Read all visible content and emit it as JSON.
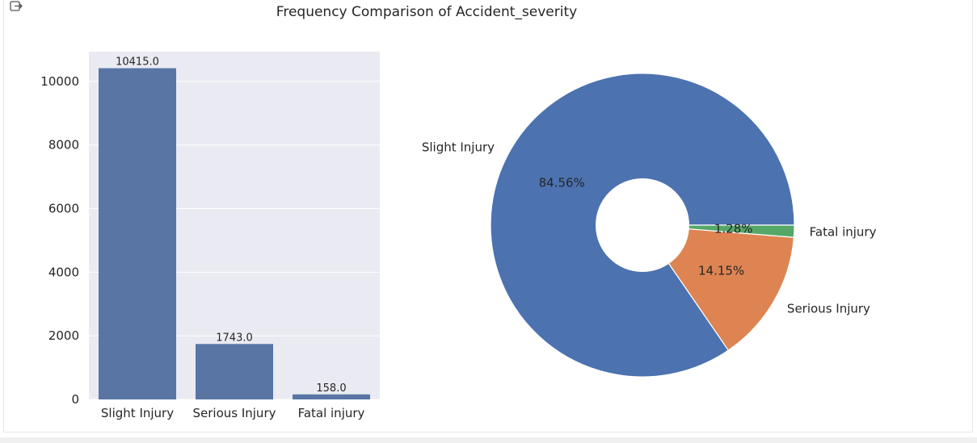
{
  "title": "Frequency Comparison of Accident_severity",
  "output_icon": "output-export-icon",
  "colors": {
    "axes_bg": "#eaeaf2",
    "grid": "#ffffff",
    "bar": "#5875a4",
    "pie": [
      "#4c72b0",
      "#dd8452",
      "#55a868"
    ]
  },
  "chart_data": [
    {
      "type": "bar",
      "categories": [
        "Slight Injury",
        "Serious Injury",
        "Fatal injury"
      ],
      "values": [
        10415,
        1743,
        158
      ],
      "data_labels": [
        "10415.0",
        "1743.0",
        "158.0"
      ],
      "yticks": [
        "0",
        "2000",
        "4000",
        "6000",
        "8000",
        "10000"
      ],
      "ylim": [
        0,
        10936
      ],
      "grid": true,
      "xlabel": "",
      "ylabel": ""
    },
    {
      "type": "pie",
      "donut": true,
      "labels": [
        "Slight Injury",
        "Serious Injury",
        "Fatal injury"
      ],
      "values": [
        10415,
        1743,
        158
      ],
      "percent_labels": [
        "84.56%",
        "14.15%",
        "1.28%"
      ]
    }
  ]
}
